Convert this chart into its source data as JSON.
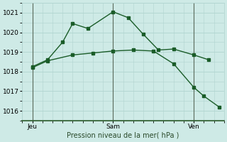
{
  "title": "Pression niveau de la mer( hPa )",
  "bg_color": "#ceeae6",
  "grid_color": "#b0d4cf",
  "line_color": "#1a5c28",
  "vline_color": "#5a6a5a",
  "border_color": "#2a5a2a",
  "ylim": [
    1015.5,
    1021.5
  ],
  "yticks": [
    1016,
    1017,
    1018,
    1019,
    1020,
    1021
  ],
  "xlim": [
    0,
    20
  ],
  "x_ticks_pos": [
    1,
    9,
    17
  ],
  "x_tick_labels": [
    "Jeu",
    "Sam",
    "Ven"
  ],
  "vline_positions": [
    1,
    9,
    17
  ],
  "line1_x": [
    1,
    2.5,
    4,
    5,
    6.5,
    9,
    10.5,
    12,
    13.5,
    15,
    17,
    18.5
  ],
  "line1_y": [
    1018.25,
    1018.6,
    1019.5,
    1020.45,
    1020.2,
    1021.05,
    1020.75,
    1019.9,
    1019.1,
    1019.15,
    1018.85,
    1018.6
  ],
  "line2_x": [
    1,
    2.5,
    5,
    7,
    9,
    11,
    13,
    15,
    17,
    18,
    19.5
  ],
  "line2_y": [
    1018.2,
    1018.55,
    1018.85,
    1018.95,
    1019.05,
    1019.1,
    1019.05,
    1018.4,
    1017.2,
    1016.75,
    1016.2
  ],
  "marker_size": 2.5,
  "linewidth": 1.0,
  "title_fontsize": 7,
  "tick_fontsize": 6.5
}
